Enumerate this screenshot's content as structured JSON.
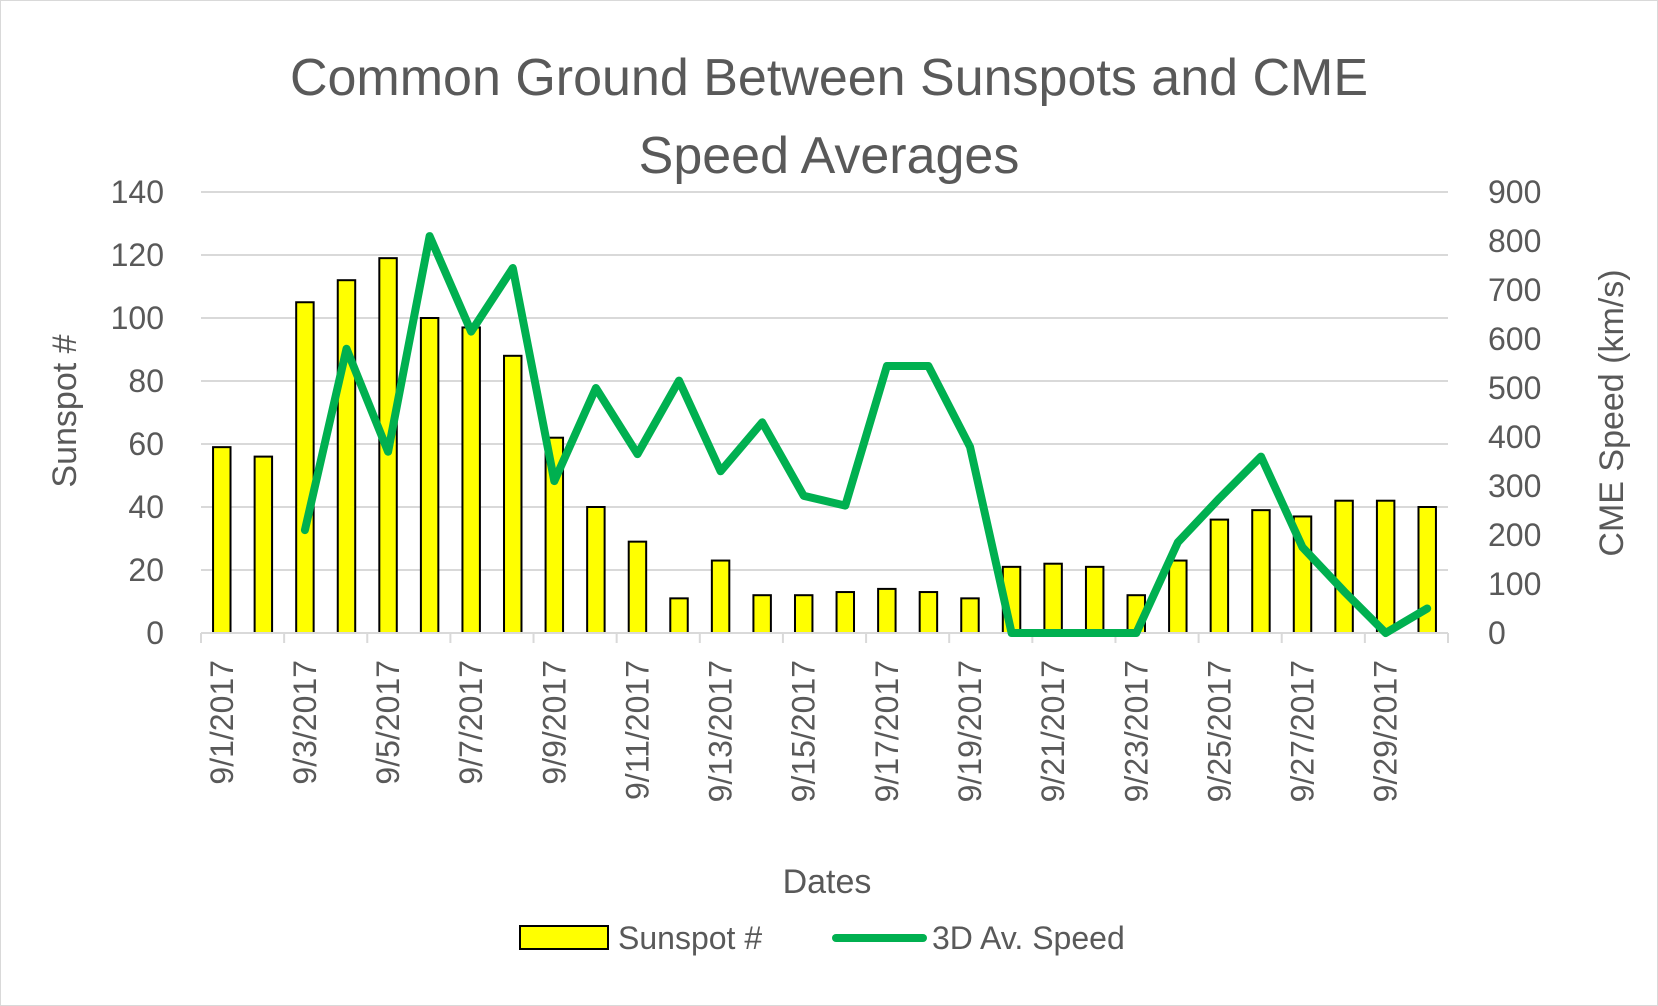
{
  "chart_data": {
    "type": "bar+line",
    "title_line1": "Common Ground Between Sunspots and CME",
    "title_line2": "Speed Averages",
    "xlabel": "Dates",
    "ylabel_left": "Sunspot #",
    "ylabel_right": "CME Speed (km/s)",
    "ylim_left": [
      0,
      140
    ],
    "ylim_right": [
      0,
      900
    ],
    "yticks_left": [
      "0",
      "20",
      "40",
      "60",
      "80",
      "100",
      "120",
      "140"
    ],
    "yticks_right": [
      "0",
      "100",
      "200",
      "300",
      "400",
      "500",
      "600",
      "700",
      "800",
      "900"
    ],
    "grid": true,
    "legend_position": "bottom",
    "categories": [
      "9/1/2017",
      "9/2/2017",
      "9/3/2017",
      "9/4/2017",
      "9/5/2017",
      "9/6/2017",
      "9/7/2017",
      "9/8/2017",
      "9/9/2017",
      "9/10/2017",
      "9/11/2017",
      "9/12/2017",
      "9/13/2017",
      "9/14/2017",
      "9/15/2017",
      "9/16/2017",
      "9/17/2017",
      "9/18/2017",
      "9/19/2017",
      "9/20/2017",
      "9/21/2017",
      "9/22/2017",
      "9/23/2017",
      "9/24/2017",
      "9/25/2017",
      "9/26/2017",
      "9/27/2017",
      "9/28/2017",
      "9/29/2017",
      "9/30/2017"
    ],
    "x_tick_labels": [
      "9/1/2017",
      "9/3/2017",
      "9/5/2017",
      "9/7/2017",
      "9/9/2017",
      "9/11/2017",
      "9/13/2017",
      "9/15/2017",
      "9/17/2017",
      "9/19/2017",
      "9/21/2017",
      "9/23/2017",
      "9/25/2017",
      "9/27/2017",
      "9/29/2017"
    ],
    "series": [
      {
        "name": "Sunspot #",
        "type": "bar",
        "axis": "left",
        "color": "#ffff00",
        "edge_color": "#000000",
        "values": [
          59,
          56,
          105,
          112,
          119,
          100,
          97,
          88,
          62,
          40,
          29,
          11,
          23,
          12,
          12,
          13,
          14,
          13,
          11,
          21,
          22,
          21,
          12,
          23,
          36,
          39,
          37,
          42,
          42,
          40
        ]
      },
      {
        "name": "3D Av. Speed",
        "type": "line",
        "axis": "right",
        "color": "#00b050",
        "values": [
          null,
          null,
          210,
          580,
          370,
          810,
          615,
          745,
          310,
          500,
          365,
          515,
          330,
          430,
          280,
          260,
          545,
          545,
          380,
          0,
          0,
          0,
          0,
          185,
          275,
          360,
          175,
          85,
          0,
          50
        ]
      }
    ]
  }
}
